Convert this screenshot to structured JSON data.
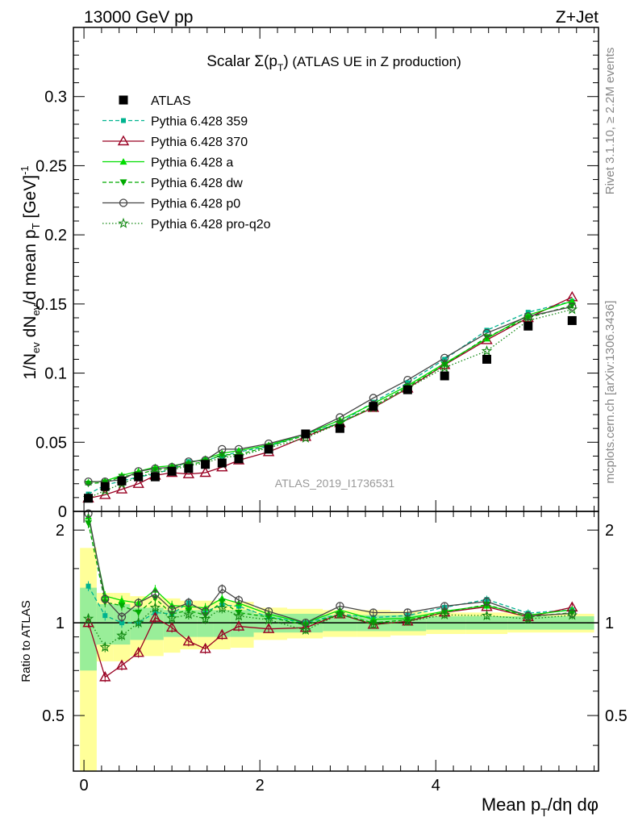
{
  "header": {
    "left": "13000 GeV pp",
    "right": "Z+Jet"
  },
  "side_labels": {
    "rivet": "Rivet 3.1.10, ≥ 2.2M events",
    "mcplots": "mcplots.cern.ch [arXiv:1306.3436]"
  },
  "watermark": "ATLAS_2019_I1736531",
  "chart_data": {
    "type": "line",
    "title_parts": {
      "lead": "Scalar Σ(p",
      "sub": "T",
      "close": ")",
      "rest": " (ATLAS UE in Z production)"
    },
    "xlabel_parts": {
      "lead": "Mean p",
      "sub": "T",
      "rest": "/dη dφ"
    },
    "ylabel_parts": {
      "a": "1/N",
      "a_sub": "ev",
      "b": " dN",
      "b_sub": "ev",
      "c": "/d mean p",
      "c_sub": "T",
      "d": " [GeV]",
      "d_sup": "-1"
    },
    "ratio_ylabel": "Ratio to ATLAS",
    "xlim": [
      -0.12,
      5.85
    ],
    "ylim": [
      0,
      0.35
    ],
    "ratio_ylim": [
      0.33,
      2.3
    ],
    "ratio_scale": "log",
    "x_ticks": [
      "0",
      "2",
      "4"
    ],
    "y_ticks": [
      "0",
      "0.05",
      "0.1",
      "0.15",
      "0.2",
      "0.25",
      "0.3"
    ],
    "ratio_ticks": [
      "0.5",
      "1",
      "2"
    ],
    "legend_position": "top-left",
    "x": [
      0.05,
      0.24,
      0.43,
      0.62,
      0.81,
      1.0,
      1.19,
      1.38,
      1.57,
      1.76,
      2.1,
      2.52,
      2.91,
      3.29,
      3.68,
      4.1,
      4.58,
      5.05,
      5.55
    ],
    "atlas": [
      0.0095,
      0.018,
      0.022,
      0.025,
      0.025,
      0.029,
      0.031,
      0.034,
      0.035,
      0.038,
      0.045,
      0.056,
      0.06,
      0.076,
      0.088,
      0.098,
      0.11,
      0.134,
      0.138
    ],
    "ratio_band_green": [
      0.3,
      0.15,
      0.15,
      0.12,
      0.12,
      0.1,
      0.1,
      0.1,
      0.1,
      0.1,
      0.07,
      0.07,
      0.06,
      0.06,
      0.06,
      0.05,
      0.05,
      0.05,
      0.05
    ],
    "ratio_band_yellow": [
      0.75,
      0.25,
      0.25,
      0.22,
      0.22,
      0.2,
      0.18,
      0.18,
      0.18,
      0.17,
      0.12,
      0.11,
      0.1,
      0.1,
      0.09,
      0.08,
      0.08,
      0.07,
      0.07
    ],
    "series": [
      {
        "name": "ATLAS",
        "color": "#000000",
        "marker": "square"
      },
      {
        "name": "Pythia 6.428 359",
        "color": "#00b38f",
        "dash": "5,3",
        "marker": "square-small",
        "values": [
          0.0125,
          0.019,
          0.022,
          0.025,
          0.027,
          0.031,
          0.036,
          0.037,
          0.04,
          0.043,
          0.047,
          0.056,
          0.064,
          0.079,
          0.093,
          0.11,
          0.131,
          0.144,
          0.152
        ]
      },
      {
        "name": "Pythia 6.428 370",
        "color": "#990022",
        "dash": "",
        "marker": "triangle-open",
        "values": [
          0.0095,
          0.012,
          0.016,
          0.02,
          0.026,
          0.028,
          0.027,
          0.028,
          0.032,
          0.037,
          0.043,
          0.054,
          0.064,
          0.075,
          0.089,
          0.106,
          0.124,
          0.14,
          0.155
        ]
      },
      {
        "name": "Pythia 6.428 a",
        "color": "#00dd00",
        "dash": "",
        "marker": "triangle",
        "values": [
          0.021,
          0.022,
          0.026,
          0.029,
          0.032,
          0.033,
          0.035,
          0.038,
          0.042,
          0.044,
          0.048,
          0.056,
          0.066,
          0.078,
          0.091,
          0.107,
          0.125,
          0.142,
          0.152
        ]
      },
      {
        "name": "Pythia 6.428 dw",
        "color": "#00aa00",
        "dash": "5,3",
        "marker": "triangle-down",
        "values": [
          0.02,
          0.021,
          0.025,
          0.027,
          0.03,
          0.031,
          0.034,
          0.036,
          0.041,
          0.041,
          0.047,
          0.055,
          0.064,
          0.076,
          0.09,
          0.106,
          0.126,
          0.14,
          0.149
        ]
      },
      {
        "name": "Pythia 6.428 p0",
        "color": "#444444",
        "dash": "",
        "marker": "circle-open",
        "values": [
          0.0215,
          0.0215,
          0.023,
          0.029,
          0.031,
          0.032,
          0.036,
          0.037,
          0.045,
          0.045,
          0.049,
          0.056,
          0.068,
          0.082,
          0.095,
          0.111,
          0.129,
          0.141,
          0.148
        ]
      },
      {
        "name": "Pythia 6.428 pro-q2o",
        "color": "#118811",
        "dash": "1.5,2.5",
        "marker": "star",
        "values": [
          0.0098,
          0.015,
          0.02,
          0.025,
          0.028,
          0.03,
          0.033,
          0.035,
          0.039,
          0.04,
          0.046,
          0.053,
          0.064,
          0.075,
          0.089,
          0.104,
          0.116,
          0.138,
          0.146
        ]
      }
    ]
  }
}
